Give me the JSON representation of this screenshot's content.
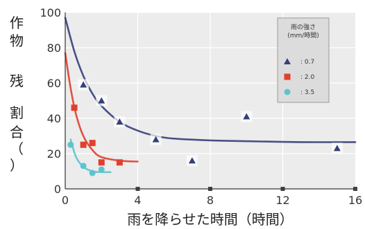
{
  "chart_data": {
    "type": "scatter",
    "title": "",
    "xlabel": "雨を降らせた時間（時間）",
    "ylabel_chars": [
      "作",
      "物",
      "",
      "残",
      "",
      "割",
      "合",
      "（",
      "）"
    ],
    "xlim": [
      0,
      16
    ],
    "ylim": [
      0,
      100
    ],
    "xticks": [
      "0",
      "4",
      "8",
      "12",
      "16"
    ],
    "yticks": [
      "0",
      "20",
      "40",
      "60",
      "80",
      "100"
    ],
    "grid": true,
    "legend": {
      "placement": "top-right",
      "title_lines": [
        "雨の強さ",
        "(mm/時間)"
      ],
      "entries": [
        "0.7",
        "2.0",
        "3.5"
      ]
    },
    "series": [
      {
        "name": "0.7",
        "color": "#34407a",
        "marker": "triangle",
        "points": [
          [
            1.0,
            59
          ],
          [
            2.0,
            50
          ],
          [
            3.0,
            38
          ],
          [
            5.0,
            28
          ],
          [
            7.0,
            16
          ],
          [
            10.0,
            41
          ],
          [
            15.0,
            23
          ]
        ],
        "curve": [
          [
            0.0,
            97
          ],
          [
            0.5,
            78
          ],
          [
            1.0,
            64
          ],
          [
            1.5,
            54
          ],
          [
            2.0,
            47
          ],
          [
            3.0,
            38
          ],
          [
            4.0,
            33
          ],
          [
            5.0,
            30
          ],
          [
            6.0,
            28.5
          ],
          [
            8.0,
            27.5
          ],
          [
            10.0,
            27
          ],
          [
            13.0,
            26.5
          ],
          [
            16.0,
            26.5
          ]
        ]
      },
      {
        "name": "2.0",
        "color": "#e0402f",
        "marker": "square",
        "points": [
          [
            0.5,
            46
          ],
          [
            1.0,
            25
          ],
          [
            1.5,
            26
          ],
          [
            2.0,
            15
          ],
          [
            3.0,
            15
          ]
        ],
        "curve": [
          [
            0.0,
            77
          ],
          [
            0.3,
            57
          ],
          [
            0.6,
            42
          ],
          [
            1.0,
            30
          ],
          [
            1.5,
            22
          ],
          [
            2.0,
            18
          ],
          [
            3.0,
            16
          ],
          [
            4.0,
            15.5
          ]
        ]
      },
      {
        "name": "3.5",
        "color": "#5dc4cf",
        "marker": "circle",
        "points": [
          [
            0.3,
            25
          ],
          [
            1.0,
            13
          ],
          [
            1.5,
            9
          ],
          [
            2.0,
            11
          ]
        ],
        "curve": [
          [
            0.3,
            28
          ],
          [
            0.6,
            18
          ],
          [
            1.0,
            12.5
          ],
          [
            1.5,
            10
          ],
          [
            2.0,
            9.5
          ],
          [
            2.5,
            9.5
          ]
        ]
      }
    ]
  }
}
